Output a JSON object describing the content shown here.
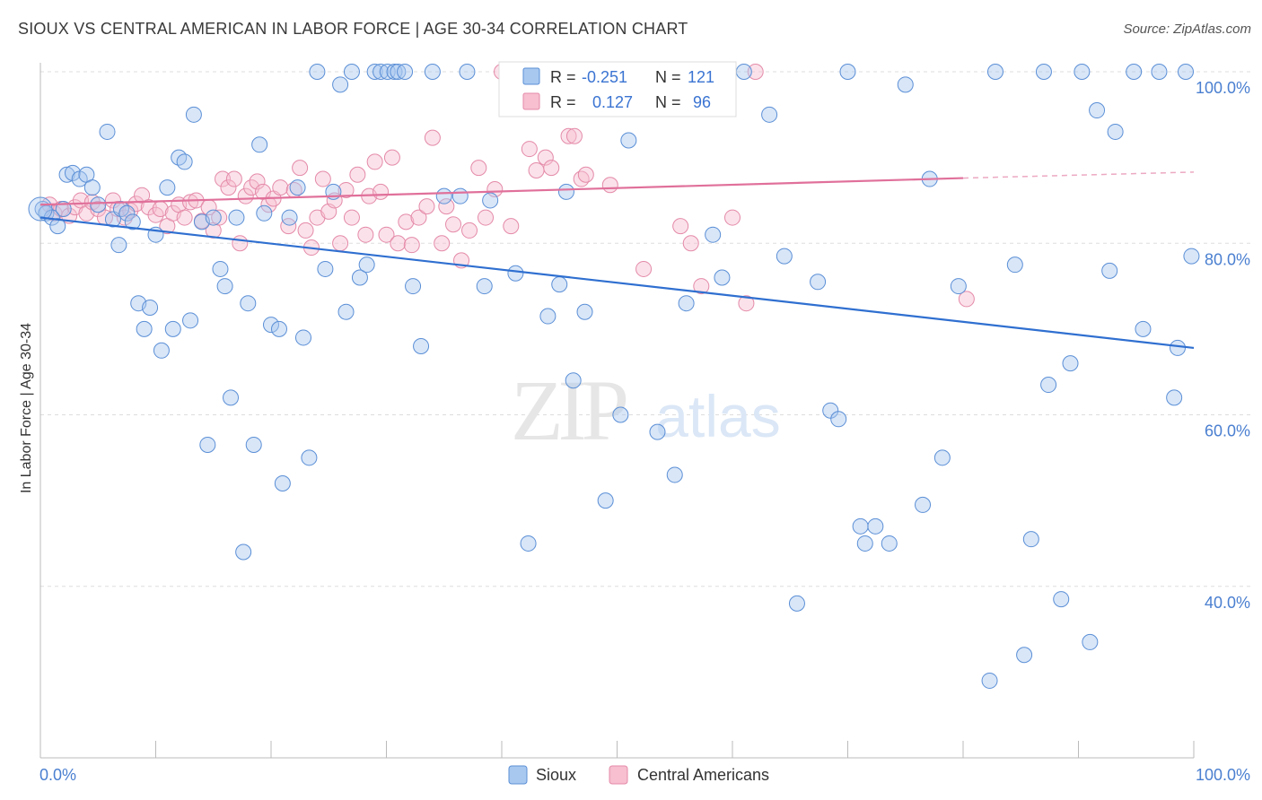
{
  "title": "SIOUX VS CENTRAL AMERICAN IN LABOR FORCE | AGE 30-34 CORRELATION CHART",
  "source": "Source: ZipAtlas.com",
  "watermark": {
    "zip": "ZIP",
    "atlas": "atlas"
  },
  "colors": {
    "sioux_fill": "#a8c8f0",
    "sioux_stroke": "#5b8fd6",
    "sioux_line": "#2f6fd0",
    "central_fill": "#f7bfd0",
    "central_stroke": "#e48aa8",
    "central_line": "#e0709a",
    "tick_label": "#4a7fd0",
    "grid": "#dddddd"
  },
  "legend_box": {
    "rows": [
      {
        "r_label": "R =",
        "r_value": "-0.251",
        "n_label": "N =",
        "n_value": "121"
      },
      {
        "r_label": "R =",
        "r_value": "0.127",
        "n_label": "N =",
        "n_value": "96"
      }
    ]
  },
  "bottom_legend": [
    "Sioux",
    "Central Americans"
  ],
  "chart_data": {
    "type": "scatter",
    "ylabel": "In Labor Force | Age 30-34",
    "xlim": [
      0,
      100
    ],
    "ylim": [
      20,
      100
    ],
    "x_tick_labels": [
      "0.0%",
      "100.0%"
    ],
    "y_tick_labels": [
      "100.0%",
      "80.0%",
      "60.0%",
      "40.0%"
    ],
    "y_ticks": [
      100,
      80,
      60,
      40
    ],
    "grid": true,
    "legend_placement": "bottom-center",
    "series": [
      {
        "name": "Sioux",
        "trend": {
          "x": [
            0,
            100
          ],
          "y": [
            83.0,
            67.8
          ]
        },
        "points": [
          [
            0.2,
            84
          ],
          [
            0.5,
            83.5
          ],
          [
            1,
            83
          ],
          [
            1.5,
            82
          ],
          [
            2,
            84
          ],
          [
            2.3,
            88
          ],
          [
            2.8,
            88.2
          ],
          [
            3.4,
            87.5
          ],
          [
            4,
            88
          ],
          [
            4.5,
            86.5
          ],
          [
            5,
            84.5
          ],
          [
            5.8,
            93
          ],
          [
            6.3,
            82.8
          ],
          [
            6.8,
            79.8
          ],
          [
            7,
            84
          ],
          [
            7.5,
            83.5
          ],
          [
            8,
            82.5
          ],
          [
            8.5,
            73
          ],
          [
            9,
            70
          ],
          [
            9.5,
            72.5
          ],
          [
            10,
            81
          ],
          [
            10.5,
            67.5
          ],
          [
            11,
            86.5
          ],
          [
            11.5,
            70
          ],
          [
            12,
            90
          ],
          [
            12.5,
            89.5
          ],
          [
            13,
            71
          ],
          [
            13.3,
            95
          ],
          [
            14,
            82.5
          ],
          [
            14.5,
            56.5
          ],
          [
            15,
            83
          ],
          [
            15.6,
            77
          ],
          [
            16,
            75
          ],
          [
            16.5,
            62
          ],
          [
            17,
            83
          ],
          [
            17.6,
            44
          ],
          [
            18,
            73
          ],
          [
            18.5,
            56.5
          ],
          [
            19,
            91.5
          ],
          [
            19.4,
            83.5
          ],
          [
            20,
            70.5
          ],
          [
            20.7,
            70
          ],
          [
            21,
            52
          ],
          [
            21.6,
            83
          ],
          [
            22.3,
            86.5
          ],
          [
            22.8,
            69
          ],
          [
            23.3,
            55
          ],
          [
            24,
            100
          ],
          [
            24.7,
            77
          ],
          [
            25.4,
            86
          ],
          [
            26,
            98.5
          ],
          [
            26.5,
            72
          ],
          [
            27,
            100
          ],
          [
            27.7,
            76
          ],
          [
            28.3,
            77.5
          ],
          [
            29,
            100
          ],
          [
            29.5,
            100
          ],
          [
            30.1,
            100
          ],
          [
            30.7,
            100
          ],
          [
            31,
            100
          ],
          [
            31.6,
            100
          ],
          [
            32.3,
            75
          ],
          [
            33,
            68
          ],
          [
            34,
            100
          ],
          [
            35,
            85.5
          ],
          [
            36.4,
            85.5
          ],
          [
            37,
            100
          ],
          [
            38.5,
            75
          ],
          [
            39,
            85
          ],
          [
            41.2,
            76.5
          ],
          [
            42.3,
            45
          ],
          [
            44,
            71.5
          ],
          [
            45,
            75.2
          ],
          [
            45.6,
            86
          ],
          [
            46.2,
            64
          ],
          [
            47.2,
            72
          ],
          [
            49,
            50
          ],
          [
            50.3,
            60
          ],
          [
            51,
            92
          ],
          [
            53.5,
            58
          ],
          [
            55,
            53
          ],
          [
            56,
            73
          ],
          [
            57.3,
            100
          ],
          [
            58.3,
            81
          ],
          [
            59.1,
            76
          ],
          [
            61,
            100
          ],
          [
            63.2,
            95
          ],
          [
            64.5,
            78.5
          ],
          [
            65.6,
            38
          ],
          [
            67.4,
            75.5
          ],
          [
            68.5,
            60.5
          ],
          [
            69.2,
            59.5
          ],
          [
            70,
            100
          ],
          [
            71.1,
            47
          ],
          [
            71.5,
            45
          ],
          [
            72.4,
            47
          ],
          [
            73.6,
            45
          ],
          [
            75,
            98.5
          ],
          [
            76.5,
            49.5
          ],
          [
            77.1,
            87.5
          ],
          [
            78.2,
            55
          ],
          [
            79.6,
            75
          ],
          [
            82.3,
            29
          ],
          [
            82.8,
            100
          ],
          [
            84.5,
            77.5
          ],
          [
            85.3,
            32
          ],
          [
            85.9,
            45.5
          ],
          [
            87,
            100
          ],
          [
            87.4,
            63.5
          ],
          [
            88.5,
            38.5
          ],
          [
            89.3,
            66
          ],
          [
            90.3,
            100
          ],
          [
            91,
            33.5
          ],
          [
            91.6,
            95.5
          ],
          [
            92.7,
            76.8
          ],
          [
            93.2,
            93
          ],
          [
            94.8,
            100
          ],
          [
            95.6,
            70
          ],
          [
            97,
            100
          ],
          [
            98.3,
            62
          ],
          [
            98.6,
            67.8
          ],
          [
            99.3,
            100
          ],
          [
            99.8,
            78.5
          ]
        ]
      },
      {
        "name": "Central Americans",
        "trend": {
          "x": [
            0,
            80
          ],
          "y": [
            84.5,
            87.6
          ],
          "dashed_to": [
            100,
            88.3
          ]
        },
        "points": [
          [
            0.8,
            84.5
          ],
          [
            1.2,
            83.5
          ],
          [
            1.8,
            84
          ],
          [
            2.5,
            83.2
          ],
          [
            3,
            84.2
          ],
          [
            3.5,
            85
          ],
          [
            4,
            83.5
          ],
          [
            4.5,
            84.8
          ],
          [
            5,
            84
          ],
          [
            5.6,
            83
          ],
          [
            6.3,
            85
          ],
          [
            6.7,
            84
          ],
          [
            7.3,
            83
          ],
          [
            7.8,
            83.8
          ],
          [
            8.3,
            84.6
          ],
          [
            8.8,
            85.6
          ],
          [
            9.4,
            84.2
          ],
          [
            10,
            83.3
          ],
          [
            10.4,
            84
          ],
          [
            11,
            82
          ],
          [
            11.5,
            83.5
          ],
          [
            12,
            84.5
          ],
          [
            12.5,
            83
          ],
          [
            13,
            84.8
          ],
          [
            13.5,
            85
          ],
          [
            14,
            82.6
          ],
          [
            14.6,
            84.2
          ],
          [
            15,
            81.5
          ],
          [
            15.5,
            83
          ],
          [
            15.8,
            87.5
          ],
          [
            16.3,
            86.5
          ],
          [
            16.8,
            87.5
          ],
          [
            17.3,
            80
          ],
          [
            17.8,
            85.5
          ],
          [
            18.3,
            86.5
          ],
          [
            18.8,
            87.2
          ],
          [
            19.3,
            86
          ],
          [
            19.8,
            84.5
          ],
          [
            20.2,
            85.2
          ],
          [
            20.8,
            86.5
          ],
          [
            21.5,
            82
          ],
          [
            22,
            86.2
          ],
          [
            22.5,
            88.8
          ],
          [
            23,
            81.5
          ],
          [
            23.5,
            79.5
          ],
          [
            24,
            83
          ],
          [
            24.5,
            87.5
          ],
          [
            25,
            83.7
          ],
          [
            25.5,
            85
          ],
          [
            26,
            80
          ],
          [
            26.5,
            86.2
          ],
          [
            27,
            83
          ],
          [
            27.5,
            88
          ],
          [
            28.2,
            81
          ],
          [
            28.5,
            85.5
          ],
          [
            29,
            89.5
          ],
          [
            29.5,
            86
          ],
          [
            30,
            81
          ],
          [
            30.5,
            90
          ],
          [
            31,
            80
          ],
          [
            31.7,
            82.5
          ],
          [
            32.2,
            79.8
          ],
          [
            32.8,
            83
          ],
          [
            33.5,
            84.3
          ],
          [
            34,
            92.3
          ],
          [
            34.8,
            80
          ],
          [
            35.2,
            84.3
          ],
          [
            35.8,
            82.2
          ],
          [
            36.5,
            78
          ],
          [
            37.2,
            81.5
          ],
          [
            38,
            88.8
          ],
          [
            38.6,
            83
          ],
          [
            39.4,
            86.3
          ],
          [
            40,
            100
          ],
          [
            40.8,
            82
          ],
          [
            41.5,
            97
          ],
          [
            42.4,
            91
          ],
          [
            43,
            88.5
          ],
          [
            43.8,
            90
          ],
          [
            44.3,
            88.8
          ],
          [
            45,
            97
          ],
          [
            45.8,
            92.5
          ],
          [
            46.3,
            92.5
          ],
          [
            46.9,
            87.5
          ],
          [
            47.3,
            88
          ],
          [
            48.5,
            100
          ],
          [
            49.4,
            86.8
          ],
          [
            50.4,
            96
          ],
          [
            52.3,
            77
          ],
          [
            56.4,
            80
          ],
          [
            57.3,
            75
          ],
          [
            60,
            83
          ],
          [
            61.2,
            73
          ],
          [
            80.3,
            73.5
          ],
          [
            62,
            100
          ],
          [
            55.5,
            82
          ]
        ]
      }
    ]
  }
}
